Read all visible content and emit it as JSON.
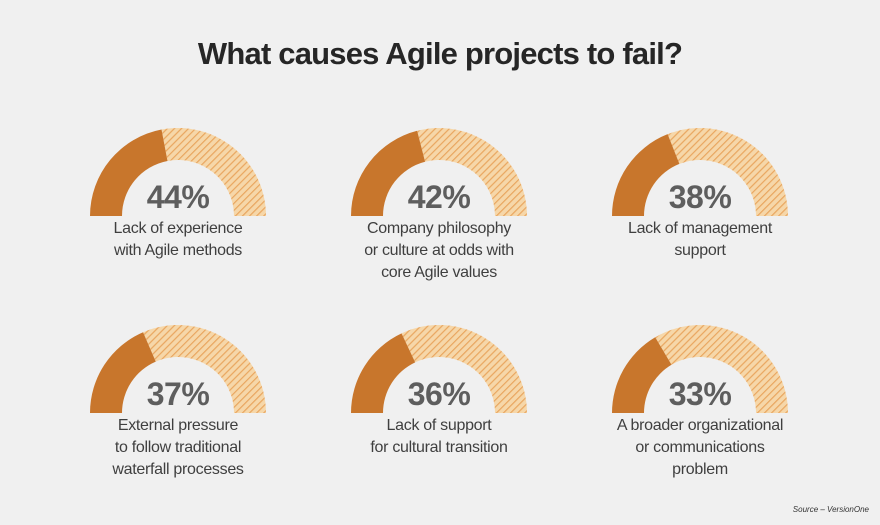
{
  "title": "What causes Agile projects to fail?",
  "source": "Source – VersionOne",
  "colors": {
    "filled": "#c8762c",
    "hatch_bg": "#f6d7a9",
    "hatch_line": "#e9a65f"
  },
  "chart_data": {
    "type": "gauge",
    "title": "What causes Agile projects to fail?",
    "max": 100,
    "items": [
      {
        "value": 44,
        "display": "44%",
        "label": "Lack of experience\nwith Agile methods"
      },
      {
        "value": 42,
        "display": "42%",
        "label": "Company philosophy\nor culture at odds with\ncore Agile values"
      },
      {
        "value": 38,
        "display": "38%",
        "label": "Lack of management\nsupport"
      },
      {
        "value": 37,
        "display": "37%",
        "label": "External pressure\nto follow traditional\nwaterfall processes"
      },
      {
        "value": 36,
        "display": "36%",
        "label": "Lack of support\nfor cultural transition"
      },
      {
        "value": 33,
        "display": "33%",
        "label": "A broader organizational\nor communications\nproblem"
      }
    ]
  }
}
